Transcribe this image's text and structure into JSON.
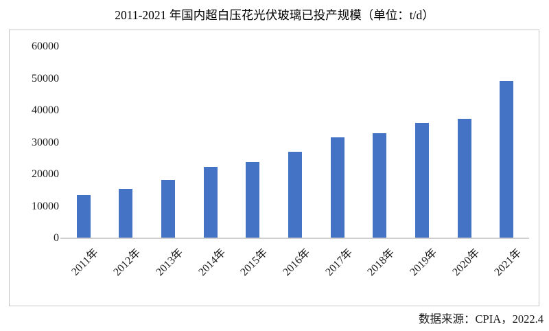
{
  "page": {
    "title": "2011-2021 年国内超白压花光伏玻璃已投产规模（单位：t/d）",
    "source_note": "数据来源：CPIA，2022.4"
  },
  "chart_data": {
    "type": "bar",
    "title": "2011-2021 年国内超白压花光伏玻璃已投产规模（单位：t/d）",
    "categories": [
      "2011年",
      "2012年",
      "2013年",
      "2014年",
      "2015年",
      "2016年",
      "2017年",
      "2018年",
      "2019年",
      "2020年",
      "2021年"
    ],
    "values": [
      13500,
      15500,
      18200,
      22400,
      23800,
      27100,
      31700,
      32800,
      36200,
      37500,
      49200
    ],
    "unit": "t/d",
    "xlabel": "",
    "ylabel": "",
    "ylim": [
      0,
      60000
    ],
    "yticks": [
      0,
      10000,
      20000,
      30000,
      40000,
      50000,
      60000
    ],
    "x_label_rotation": -45,
    "grid": false,
    "legend": "none",
    "bar_color": "#4472c4",
    "axis_color": "#cfcfcf",
    "source": "数据来源：CPIA，2022.4"
  }
}
